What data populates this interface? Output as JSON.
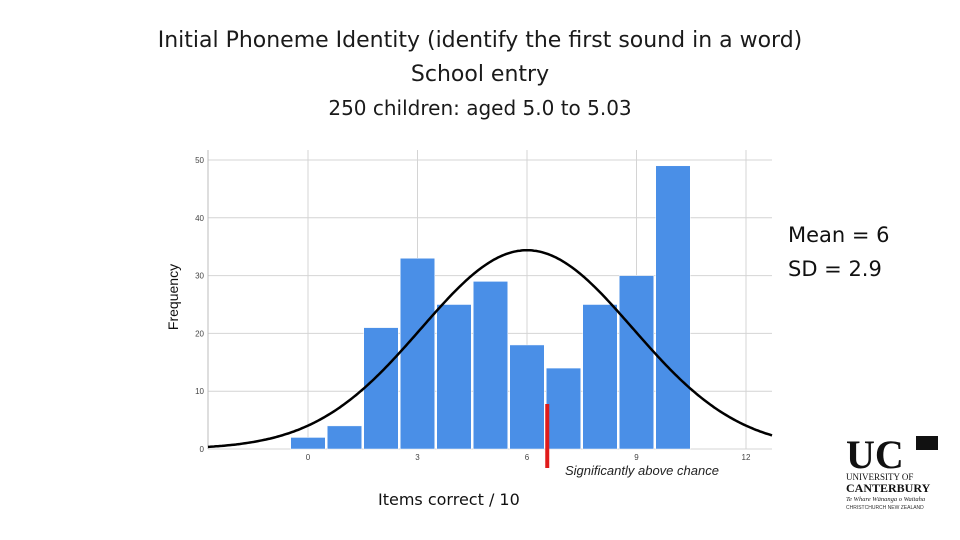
{
  "title": {
    "line1": "Initial Phoneme Identity (identify the first sound in  a word)",
    "line2": "School entry",
    "line3": "250 children: aged 5.0 to 5.03"
  },
  "stats": {
    "mean": "Mean = 6",
    "sd": "SD = 2.9"
  },
  "chart_data": {
    "type": "bar",
    "title": "Initial Phoneme Identity (identify the first sound in  a word)",
    "xlabel": "Items correct  / 10",
    "ylabel": "Frequency",
    "x": [
      0,
      1,
      2,
      3,
      4,
      5,
      6,
      7,
      8,
      9,
      10
    ],
    "values": [
      2,
      4,
      21,
      33,
      25,
      29,
      18,
      14,
      25,
      30,
      49
    ],
    "xticks": [
      0,
      3,
      6,
      9,
      12
    ],
    "yticks": [
      0,
      10,
      20,
      30,
      40,
      50
    ],
    "ylim": [
      0,
      50
    ],
    "grid": true,
    "bar_color": "#4a8fe7",
    "normal_curve": {
      "mean": 6,
      "sd": 2.9,
      "n": 250,
      "color": "#000000"
    },
    "threshold_marker": {
      "x": 6,
      "color": "#e01b1b",
      "label": "Significantly above chance"
    }
  },
  "logo": {
    "big": "UC",
    "line1": "UNIVERSITY OF",
    "line2": "CANTERBURY",
    "line3": "Te Whare Wānanga o Waitaha",
    "line4": "CHRISTCHURCH NEW ZEALAND"
  }
}
